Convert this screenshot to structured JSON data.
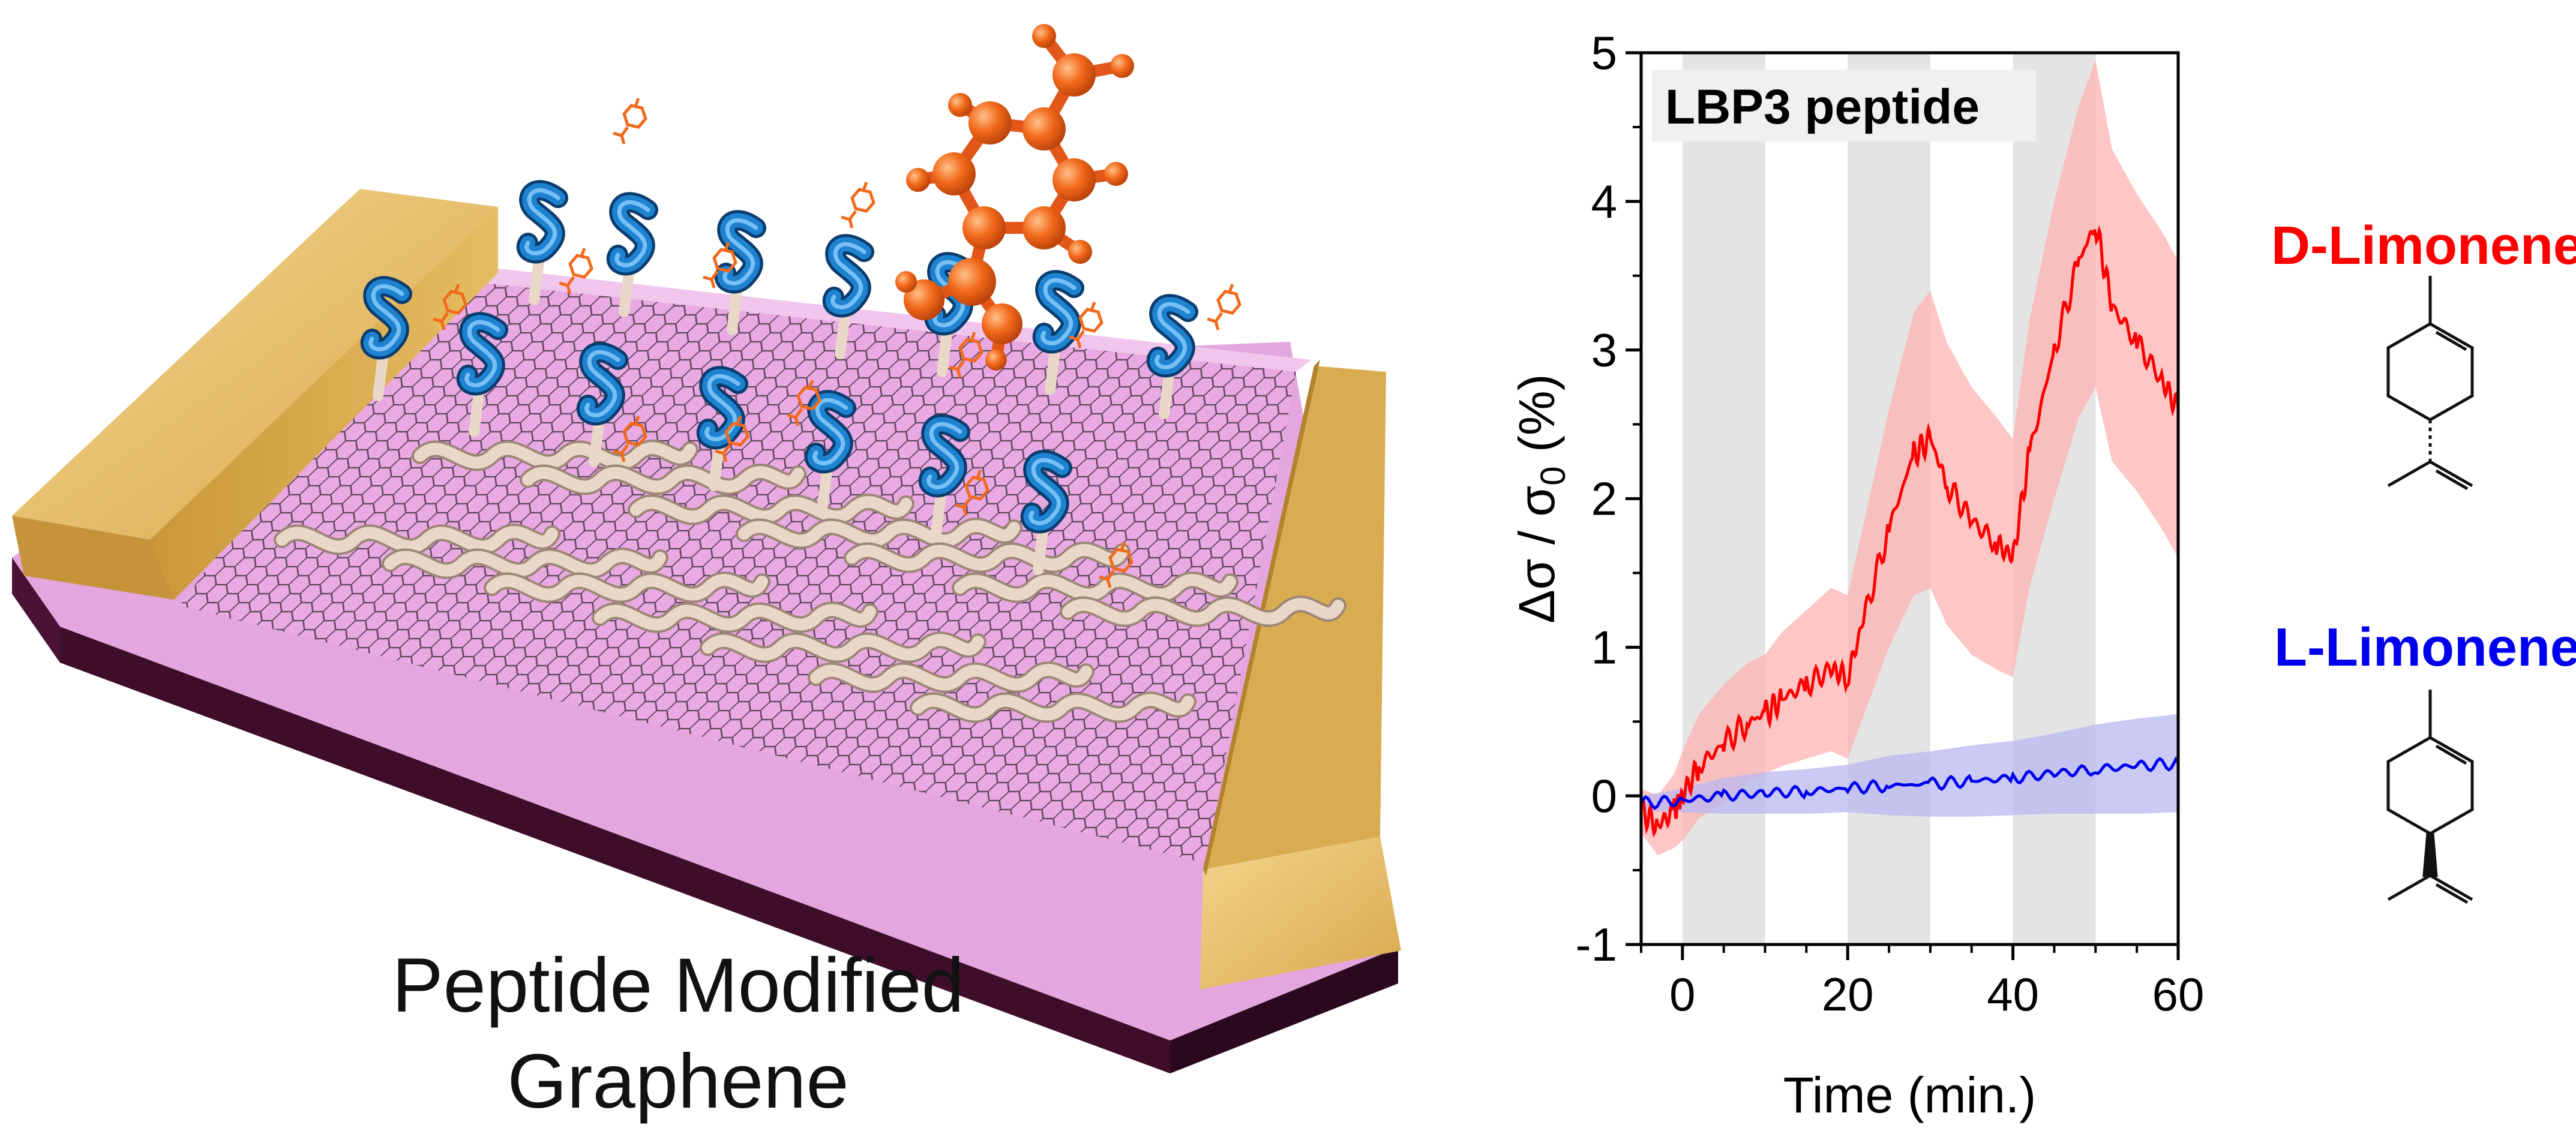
{
  "diagram": {
    "caption_line1": "Peptide Modified",
    "caption_line2": "Graphene"
  },
  "colors": {
    "gold": "#e2b75a",
    "graphene": "#e9a9e2",
    "substrate": "#3d0d2a",
    "helix": "#1d82cf",
    "coil": "#e9d7c8",
    "molecule": "#f26a1b",
    "d_series": "#ff0000",
    "l_series": "#0000ee"
  },
  "chart_data": {
    "type": "line",
    "title": "LBP3 peptide",
    "xlabel": "Time (min.)",
    "ylabel": "Δσ / σ0 (%)",
    "xlim": [
      -5,
      60
    ],
    "ylim": [
      -1,
      5
    ],
    "xticks": [
      0,
      20,
      40,
      60
    ],
    "yticks": [
      -1,
      0,
      1,
      2,
      3,
      4,
      5
    ],
    "shaded_intervals": [
      [
        0,
        10
      ],
      [
        20,
        30
      ],
      [
        40,
        50
      ]
    ],
    "grid": false,
    "legend": "right side labels",
    "series": [
      {
        "name": "D-Limonene",
        "color": "#ff0000",
        "x": [
          -5,
          -3,
          -1,
          0,
          2,
          5,
          8,
          10,
          12,
          15,
          18,
          20,
          22,
          25,
          28,
          30,
          32,
          35,
          38,
          40,
          42,
          45,
          48,
          50,
          52,
          55,
          58,
          60
        ],
        "y": [
          -0.1,
          -0.2,
          -0.1,
          0.0,
          0.2,
          0.35,
          0.5,
          0.55,
          0.65,
          0.75,
          0.85,
          0.8,
          1.2,
          1.8,
          2.3,
          2.4,
          2.1,
          1.85,
          1.7,
          1.6,
          2.3,
          3.0,
          3.6,
          3.85,
          3.3,
          3.05,
          2.8,
          2.6
        ],
        "band": [
          0.15,
          0.2,
          0.25,
          0.3,
          0.35,
          0.4,
          0.4,
          0.4,
          0.45,
          0.5,
          0.55,
          0.55,
          0.65,
          0.8,
          0.95,
          1.0,
          0.95,
          0.9,
          0.85,
          0.8,
          0.9,
          1.0,
          1.05,
          1.1,
          1.05,
          1.0,
          1.0,
          1.0
        ]
      },
      {
        "name": "L-Limonene",
        "color": "#0000ee",
        "x": [
          -5,
          0,
          5,
          10,
          15,
          20,
          25,
          30,
          35,
          40,
          45,
          50,
          55,
          60
        ],
        "y": [
          -0.05,
          -0.03,
          0.0,
          0.02,
          0.03,
          0.05,
          0.07,
          0.08,
          0.1,
          0.12,
          0.15,
          0.18,
          0.2,
          0.22
        ],
        "band": [
          0.05,
          0.08,
          0.12,
          0.14,
          0.15,
          0.16,
          0.2,
          0.22,
          0.24,
          0.25,
          0.27,
          0.3,
          0.32,
          0.33
        ]
      }
    ]
  }
}
